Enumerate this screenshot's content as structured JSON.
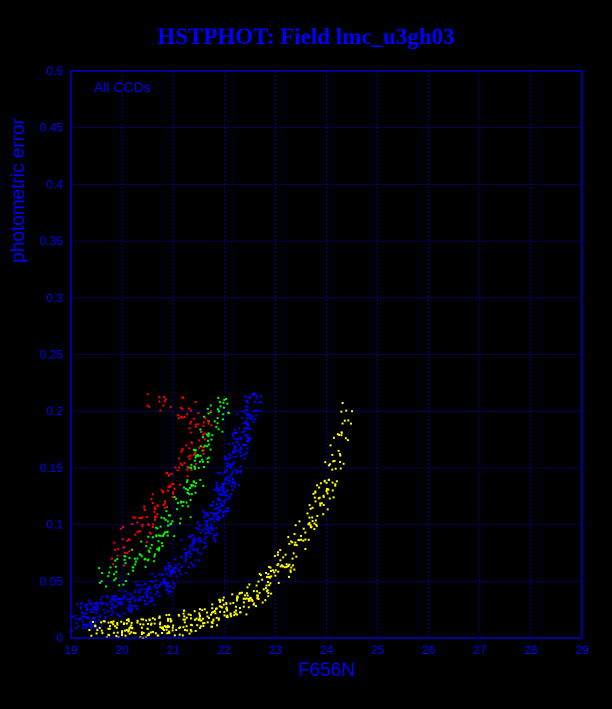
{
  "chart_data": {
    "type": "scatter",
    "title": "HSTPHOT: Field lmc_u3gh03",
    "xlabel": "F656N",
    "ylabel": "photometric error",
    "annotation": "All CCDs",
    "xlim": [
      19,
      29
    ],
    "ylim": [
      0,
      0.5
    ],
    "x_ticks": [
      "19",
      "20",
      "21",
      "22",
      "23",
      "24",
      "25",
      "26",
      "27",
      "28",
      "29"
    ],
    "y_ticks": [
      "0",
      "0.05",
      "0.1",
      "0.15",
      "0.2",
      "0.25",
      "0.3",
      "0.35",
      "0.4",
      "0.45",
      "0.5"
    ],
    "grid": true,
    "colors": {
      "background": "#000000",
      "axes": "#0000ff",
      "grid": "#0000cc"
    },
    "series": [
      {
        "color": "#0000ff",
        "points": [
          [
            19.1,
            0.017
          ],
          [
            19.5,
            0.022
          ],
          [
            20.0,
            0.03
          ],
          [
            20.5,
            0.041
          ],
          [
            21.0,
            0.058
          ],
          [
            21.5,
            0.085
          ],
          [
            21.8,
            0.107
          ],
          [
            22.0,
            0.128
          ],
          [
            22.2,
            0.155
          ],
          [
            22.4,
            0.185
          ],
          [
            22.6,
            0.215
          ]
        ]
      },
      {
        "color": "#00ff00",
        "points": [
          [
            19.6,
            0.05
          ],
          [
            20.3,
            0.07
          ],
          [
            20.8,
            0.09
          ],
          [
            21.2,
            0.12
          ],
          [
            21.5,
            0.15
          ],
          [
            21.7,
            0.18
          ],
          [
            22.0,
            0.21
          ]
        ]
      },
      {
        "color": "#ff0000",
        "points": [
          [
            19.8,
            0.07
          ],
          [
            20.4,
            0.1
          ],
          [
            20.9,
            0.13
          ],
          [
            21.3,
            0.16
          ],
          [
            21.6,
            0.19
          ],
          [
            20.5,
            0.215
          ]
        ]
      },
      {
        "color": "#ffff00",
        "points": [
          [
            19.5,
            0.004
          ],
          [
            20.0,
            0.006
          ],
          [
            20.5,
            0.008
          ],
          [
            21.0,
            0.011
          ],
          [
            21.5,
            0.016
          ],
          [
            22.0,
            0.023
          ],
          [
            22.5,
            0.035
          ],
          [
            23.0,
            0.055
          ],
          [
            23.5,
            0.09
          ],
          [
            24.0,
            0.13
          ],
          [
            24.5,
            0.2
          ]
        ]
      }
    ]
  }
}
